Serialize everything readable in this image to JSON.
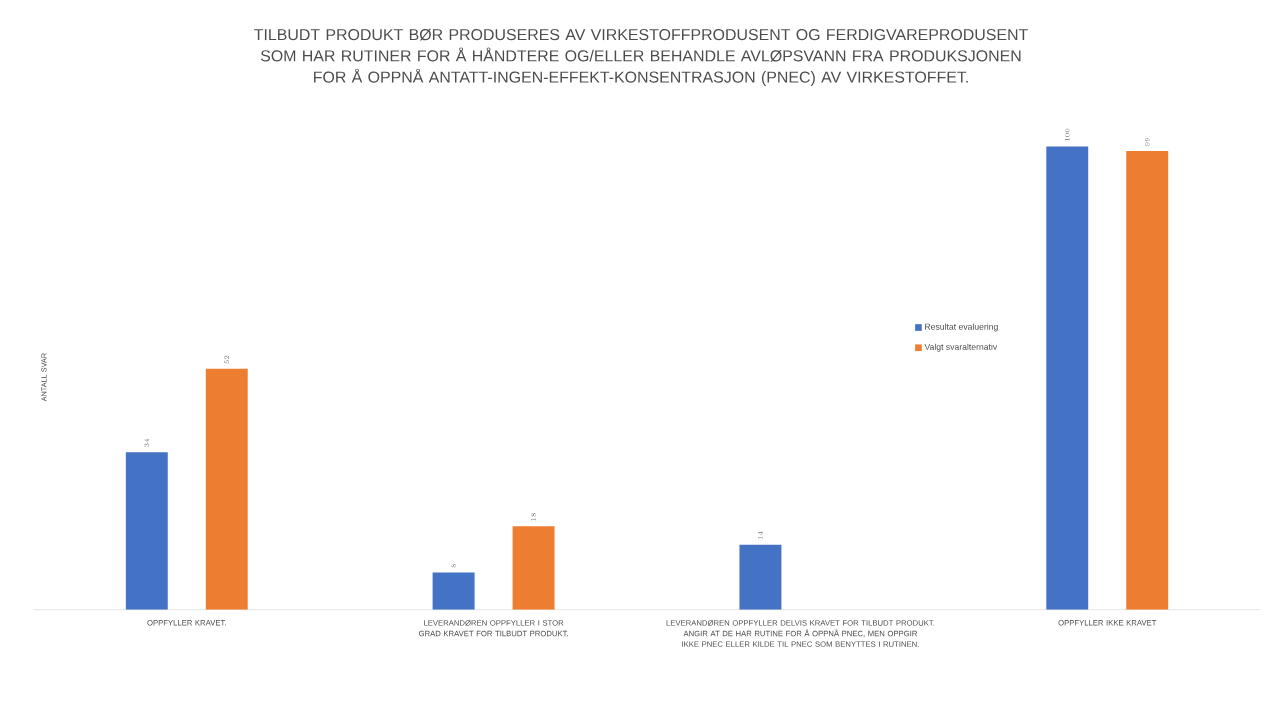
{
  "chart_data": {
    "type": "bar",
    "title": "TILBUDT PRODUKT BØR PRODUSERES AV VIRKESTOFFPRODUSENT OG FERDIGVAREPRODUSENT SOM HAR RUTINER FOR Å HÅNDTERE OG/ELLER BEHANDLE AVLØPSVANN FRA PRODUKSJONEN FOR Å OPPNÅ ANTATT-INGEN-EFFEKT-KONSENTRASJON (PNEC) AV VIRKESTOFFET.",
    "ylabel": "ANTALL SVAR",
    "categories": [
      "OPPFYLLER KRAVET.",
      "LEVERANDØREN OPPFYLLER I STOR GRAD KRAVET FOR TILBUDT PRODUKT.",
      "LEVERANDØREN OPPFYLLER DELVIS KRAVET FOR TILBUDT PRODUKT. ANGIR AT DE HAR RUTINE FOR Å OPPNÅ PNEC, MEN OPPGIR IKKE PNEC ELLER KILDE TIL PNEC SOM BENYTTES I RUTINEN.",
      "OPPFYLLER IKKE KRAVET"
    ],
    "series": [
      {
        "name": "Resultat evaluering",
        "color": "#4472c4",
        "values": [
          34,
          8,
          14,
          100
        ]
      },
      {
        "name": "Valgt svaralternativ",
        "color": "#ed7d31",
        "values": [
          52,
          18,
          null,
          99
        ]
      }
    ],
    "data_labels": true,
    "legend": "right"
  }
}
